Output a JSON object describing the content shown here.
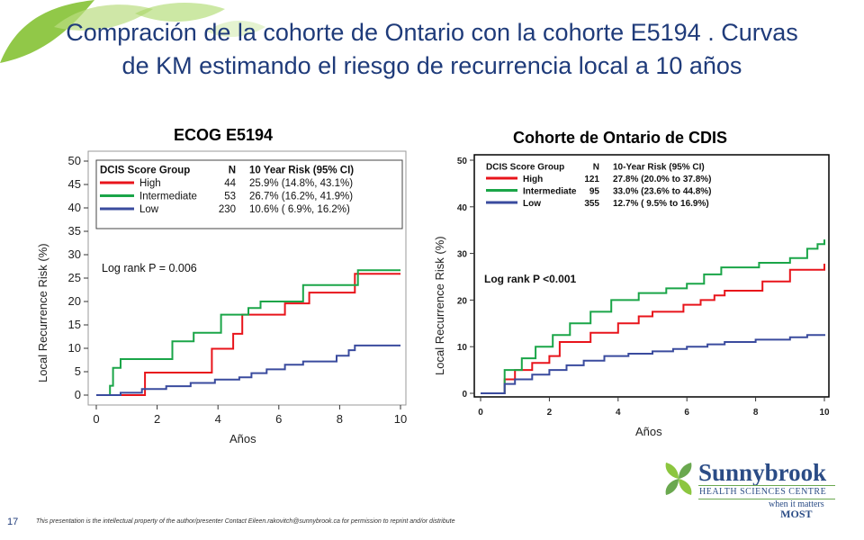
{
  "slide": {
    "title": "Compración de la cohorte de Ontario con la cohorte E5194 . Curvas de KM estimando el riesgo de recurrencia local a 10 años",
    "page_number": "17",
    "footer": "This presentation is the intellectual property of the author/presenter    Contact Eileen.rakovitch@sunnybrook.ca for permission to reprint and/or distribute",
    "logo": {
      "name": "Sunnybrook",
      "subtitle": "HEALTH SCIENCES CENTRE",
      "tagline_small": "when it matters",
      "tagline_big": "MOST"
    },
    "colors": {
      "title": "#1f3b7a",
      "high": "#e8141b",
      "intermediate": "#1aa548",
      "low": "#3a4b9e",
      "leaf": "#8cc63f"
    }
  },
  "chart_data": [
    {
      "type": "line",
      "title": "ECOG E5194",
      "xlabel": "Años",
      "ylabel": "Local Recurrence Risk (%)",
      "xlim": [
        0,
        10
      ],
      "ylim": [
        0,
        50
      ],
      "xticks": [
        0,
        2,
        4,
        6,
        8,
        10
      ],
      "yticks": [
        0,
        5,
        10,
        15,
        20,
        25,
        30,
        35,
        40,
        45,
        50
      ],
      "legend": {
        "header": [
          "DCIS Score Group",
          "N",
          "10 Year Risk (95% CI)"
        ],
        "position": "top-left"
      },
      "annotation": "Log rank P = 0.006",
      "series": [
        {
          "name": "High",
          "n": "44",
          "risk": "25.9% (14.8%, 43.1%)",
          "x": [
            0,
            0.8,
            1.6,
            1.6,
            2.5,
            3.8,
            4.0,
            4.5,
            4.7,
            4.8,
            6.2,
            7.0,
            8.0,
            8.5,
            10
          ],
          "y": [
            0,
            0,
            0,
            4.8,
            4.8,
            9.9,
            9.9,
            13.1,
            13.1,
            17.2,
            19.6,
            21.9,
            21.9,
            25.9,
            25.9
          ]
        },
        {
          "name": "Intermediate",
          "n": "53",
          "risk": "26.7% (16.2%, 41.9%)",
          "x": [
            0,
            0.45,
            0.55,
            0.8,
            2.5,
            3.2,
            4.1,
            4.3,
            5.0,
            5.4,
            6.8,
            8.3,
            8.6,
            10
          ],
          "y": [
            0,
            2.0,
            5.8,
            7.7,
            11.5,
            13.3,
            17.2,
            17.2,
            18.6,
            20.0,
            23.5,
            23.5,
            26.7,
            26.7
          ]
        },
        {
          "name": "Low",
          "n": "230",
          "risk": "10.6% ( 6.9%, 16.2%)",
          "x": [
            0,
            0.8,
            1.5,
            2.3,
            3.1,
            3.9,
            4.7,
            5.1,
            5.6,
            6.2,
            6.8,
            7.5,
            7.9,
            8.3,
            8.5,
            10
          ],
          "y": [
            0,
            0.5,
            1.3,
            1.9,
            2.6,
            3.3,
            3.8,
            4.7,
            5.5,
            6.5,
            7.2,
            7.2,
            8.4,
            9.6,
            10.6,
            10.6
          ]
        }
      ]
    },
    {
      "type": "line",
      "title": "Cohorte de Ontario de  CDIS",
      "xlabel": "Años",
      "ylabel": "Local Recurrence Risk (%)",
      "xlim": [
        0,
        10
      ],
      "ylim": [
        0,
        50
      ],
      "xticks": [
        0,
        2,
        4,
        6,
        8,
        10
      ],
      "yticks": [
        0,
        10,
        20,
        30,
        40,
        50
      ],
      "legend": {
        "header": [
          "DCIS Score Group",
          "N",
          "10-Year Risk (95% CI)"
        ],
        "position": "top-left"
      },
      "annotation": "Log rank P <0.001",
      "series": [
        {
          "name": "High",
          "n": "121",
          "risk": "27.8% (20.0% to 37.8%)",
          "x": [
            0,
            0.5,
            0.7,
            1.0,
            1.5,
            2.0,
            2.3,
            3.2,
            4.0,
            4.6,
            5.0,
            5.9,
            6.4,
            6.8,
            7.1,
            8.2,
            9.0,
            10
          ],
          "y": [
            0,
            0,
            3.0,
            5.0,
            6.5,
            8.0,
            11.0,
            13.0,
            15.0,
            16.5,
            17.5,
            19.0,
            20.0,
            21.0,
            22.0,
            24.0,
            26.5,
            27.8
          ]
        },
        {
          "name": "Intermediate",
          "n": "95",
          "risk": "33.0% (23.6% to 44.8%)",
          "x": [
            0,
            0.5,
            0.7,
            1.2,
            1.6,
            2.1,
            2.6,
            3.2,
            3.8,
            4.6,
            5.4,
            6.0,
            6.5,
            7.0,
            8.1,
            9.0,
            9.5,
            9.8,
            10
          ],
          "y": [
            0,
            0,
            5.0,
            7.5,
            10.0,
            12.5,
            15.0,
            17.5,
            20.0,
            21.5,
            22.5,
            23.5,
            25.5,
            27.0,
            28.0,
            29.0,
            31.0,
            32.0,
            33.0
          ]
        },
        {
          "name": "Low",
          "n": "355",
          "risk": "12.7% ( 9.5% to 16.9%)",
          "x": [
            0,
            0.5,
            0.7,
            1.0,
            1.5,
            2.0,
            2.5,
            3.0,
            3.6,
            4.3,
            5.0,
            5.6,
            6.0,
            6.6,
            7.1,
            8.0,
            9.0,
            9.5,
            10
          ],
          "y": [
            0,
            0,
            2.0,
            3.0,
            4.0,
            5.0,
            6.0,
            7.0,
            8.0,
            8.5,
            9.0,
            9.5,
            10.0,
            10.5,
            11.0,
            11.5,
            12.0,
            12.5,
            12.7
          ]
        }
      ]
    }
  ]
}
